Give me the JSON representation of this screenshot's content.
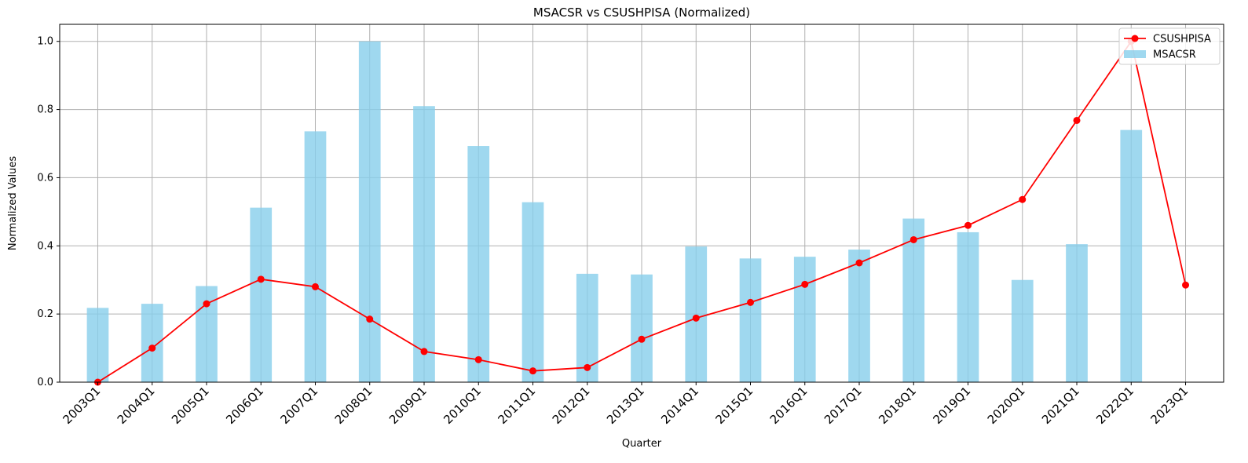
{
  "chart_data": {
    "type": "bar",
    "title": "MSACSR vs CSUSHPISA (Normalized)",
    "xlabel": "Quarter",
    "ylabel": "Normalized Values",
    "ylim": [
      0,
      1.05
    ],
    "yticks": [
      "0.0",
      "0.2",
      "0.4",
      "0.6",
      "0.8",
      "1.0"
    ],
    "grid": true,
    "legend_position": "top-right",
    "categories": [
      "2003Q1",
      "2004Q1",
      "2005Q1",
      "2006Q1",
      "2007Q1",
      "2008Q1",
      "2009Q1",
      "2010Q1",
      "2011Q1",
      "2012Q1",
      "2013Q1",
      "2014Q1",
      "2015Q1",
      "2016Q1",
      "2017Q1",
      "2018Q1",
      "2019Q1",
      "2020Q1",
      "2021Q1",
      "2022Q1",
      "2023Q1"
    ],
    "series": [
      {
        "name": "CSUSHPISA",
        "type": "line",
        "color": "#ff0000",
        "values": [
          0.0,
          0.1,
          0.23,
          0.302,
          0.28,
          0.185,
          0.09,
          0.066,
          0.033,
          0.043,
          0.126,
          0.188,
          0.234,
          0.287,
          0.35,
          0.418,
          0.46,
          0.536,
          0.768,
          1.0,
          0.285
        ]
      },
      {
        "name": "MSACSR",
        "type": "bar",
        "color": "#87ceeb",
        "values": [
          0.218,
          0.23,
          0.282,
          0.512,
          0.736,
          1.0,
          0.81,
          0.693,
          0.528,
          0.318,
          0.316,
          0.398,
          0.363,
          0.368,
          0.389,
          0.48,
          0.44,
          0.3,
          0.405,
          0.74,
          null
        ]
      }
    ]
  }
}
